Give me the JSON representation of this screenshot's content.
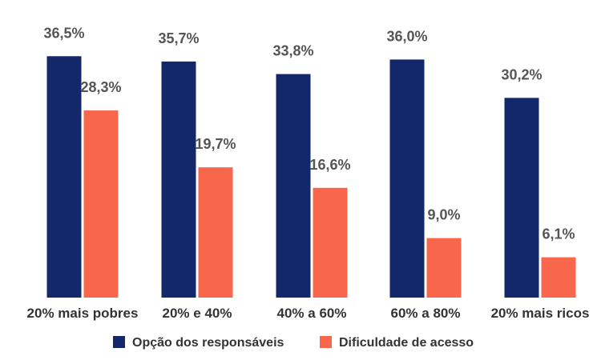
{
  "chart_data": {
    "type": "bar",
    "title": "",
    "xlabel": "",
    "ylabel": "",
    "categories": [
      "20% mais pobres",
      "20% e 40%",
      "40% a 60%",
      "60% a 80%",
      "20% mais ricos"
    ],
    "series": [
      {
        "name": "Opção dos responsáveis",
        "values": [
          36.5,
          35.7,
          33.8,
          36.0,
          30.2
        ],
        "labels": [
          "36,5%",
          "35,7%",
          "33,8%",
          "36,0%",
          "30,2%"
        ],
        "color": "#13276b"
      },
      {
        "name": "Dificuldade de acesso",
        "values": [
          28.3,
          19.7,
          16.6,
          9.0,
          6.1
        ],
        "labels": [
          "28,3%",
          "19,7%",
          "16,6%",
          "9,0%",
          "6,1%"
        ],
        "color": "#f8664b"
      }
    ],
    "ylim": [
      0,
      37.5
    ],
    "grid": false,
    "legend_position": "bottom-center"
  }
}
